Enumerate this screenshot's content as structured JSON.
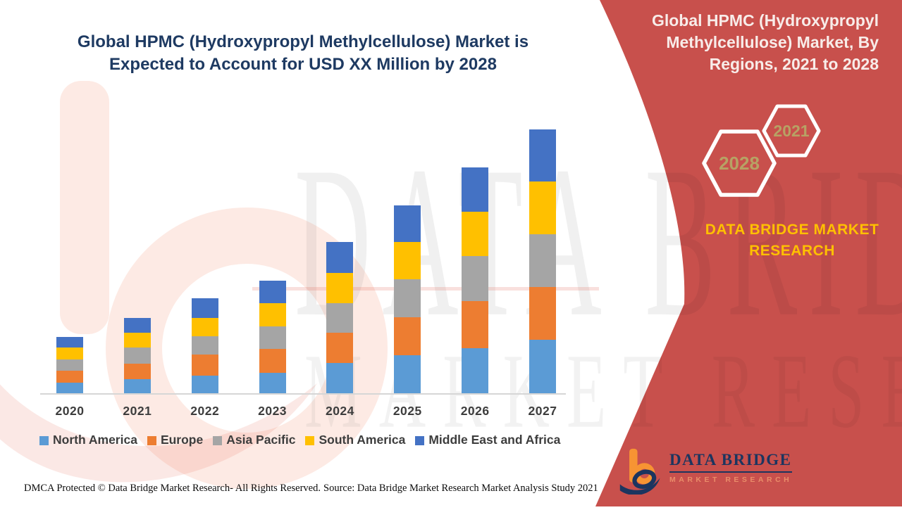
{
  "left_section": {
    "title": "Global HPMC (Hydroxypropyl Methylcellulose) Market is Expected to Account for USD XX Million by 2028",
    "footer_left": "DMCA Protected © Data Bridge Market Research- All Rights Reserved.",
    "footer_right": "Source: Data Bridge Market Research Market Analysis Study 2021"
  },
  "chart_data": {
    "type": "bar",
    "stacked": true,
    "title": "Global HPMC (Hydroxypropyl Methylcellulose) Market is Expected to Account for USD XX Million by 2028",
    "categories": [
      "2020",
      "2021",
      "2022",
      "2023",
      "2024",
      "2025",
      "2026",
      "2027"
    ],
    "series": [
      {
        "name": "North America",
        "color": "#5B9BD5",
        "values": [
          15,
          20,
          25,
          29,
          43,
          54,
          64,
          76
        ]
      },
      {
        "name": "Europe",
        "color": "#ED7D31",
        "values": [
          17,
          22,
          30,
          34,
          43,
          54,
          67,
          75
        ]
      },
      {
        "name": "Asia Pacific",
        "color": "#A5A5A5",
        "values": [
          16,
          23,
          26,
          32,
          42,
          54,
          64,
          75
        ]
      },
      {
        "name": "South America",
        "color": "#FFC000",
        "values": [
          17,
          21,
          26,
          33,
          43,
          53,
          63,
          75
        ]
      },
      {
        "name": "Middle East and Africa",
        "color": "#4472C4",
        "values": [
          15,
          21,
          28,
          32,
          44,
          52,
          63,
          74
        ]
      }
    ],
    "totals": [
      80,
      107,
      135,
      160,
      215,
      267,
      321,
      375
    ],
    "xlabel": "",
    "ylabel": "",
    "ylim": [
      0,
      400
    ],
    "units_note": "relative units; y-axis unlabeled in source (values masked as USD XX Million)",
    "grid": false,
    "legend_position": "bottom"
  },
  "right_panel": {
    "title": "Global HPMC (Hydroxypropyl Methylcellulose) Market, By Regions, 2021 to 2028",
    "hexagon_back": "2021",
    "hexagon_front": "2028",
    "brand_text": "DATA BRIDGE MARKET RESEARCH",
    "colors": {
      "panel": "#C8504C",
      "brand_text": "#FFC000",
      "hexagon_text": "#B7A264"
    }
  },
  "logo": {
    "name": "DATA BRIDGE",
    "subtitle": "MARKET RESEARCH"
  },
  "watermark": {
    "line1": "DATA BRIDGE",
    "line2": "MARKET RESEARCH"
  }
}
